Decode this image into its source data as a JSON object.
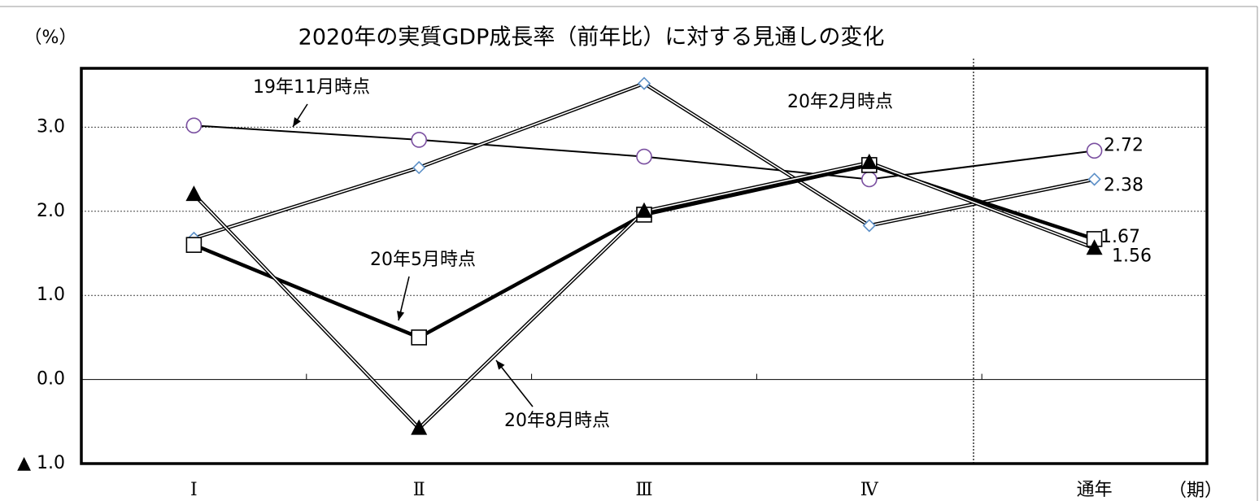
{
  "chart_data": {
    "type": "line",
    "title": "2020年の実質GDP成長率（前年比）に対する見通しの変化",
    "y_unit": "（%）",
    "x_unit": "（期）",
    "categories": [
      "Ⅰ",
      "Ⅱ",
      "Ⅲ",
      "Ⅳ",
      "通年"
    ],
    "series": [
      {
        "name": "19年11月時点",
        "color": "#7a4fa0",
        "marker": "circle",
        "line": "thin",
        "values": [
          3.02,
          2.85,
          2.65,
          2.38,
          2.72
        ]
      },
      {
        "name": "20年2月時点",
        "color": "#5b8fc7",
        "marker": "diamond",
        "line": "double",
        "values": [
          1.68,
          2.52,
          3.52,
          1.83,
          2.38
        ]
      },
      {
        "name": "20年5月時点",
        "color": "#000000",
        "marker": "square",
        "line": "thick",
        "values": [
          1.6,
          0.5,
          1.96,
          2.55,
          1.67
        ]
      },
      {
        "name": "20年8月時点",
        "color": "#000000",
        "marker": "triangle",
        "line": "double",
        "values": [
          2.2,
          -0.58,
          2.0,
          2.58,
          1.56
        ]
      }
    ],
    "ylim": [
      -1,
      3.7
    ],
    "yticks": [
      {
        "value": -1,
        "label": "▲ 1.0"
      },
      {
        "value": 0,
        "label": "0.0"
      },
      {
        "value": 1,
        "label": "1.0"
      },
      {
        "value": 2,
        "label": "2.0"
      },
      {
        "value": 3,
        "label": "3.0"
      }
    ],
    "grid": true
  }
}
